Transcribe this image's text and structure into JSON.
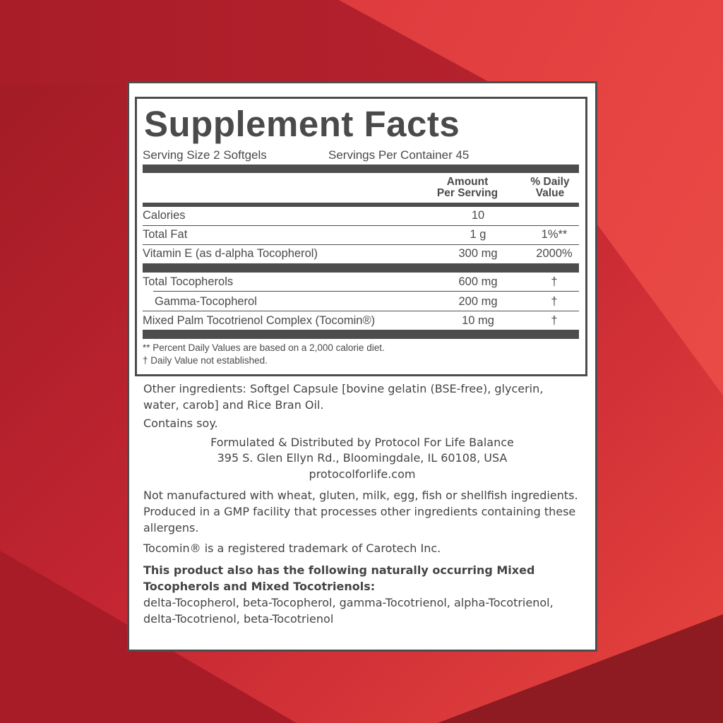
{
  "background_color": "#b8202c",
  "label": {
    "title": "Supplement Facts",
    "serving_size": "Serving Size 2 Softgels",
    "servings_per_container": "Servings Per Container 45",
    "columns": {
      "amount_line1": "Amount",
      "amount_line2": "Per Serving",
      "dv_line1": "% Daily",
      "dv_line2": "Value"
    },
    "rows_group1": [
      {
        "name": "Calories",
        "amount": "10",
        "dv": ""
      },
      {
        "name": "Total Fat",
        "amount": "1 g",
        "dv": "1%**"
      },
      {
        "name": "Vitamin E (as d-alpha Tocopherol)",
        "amount": "300 mg",
        "dv": "2000%"
      }
    ],
    "rows_group2": [
      {
        "name": "Total Tocopherols",
        "amount": "600 mg",
        "dv": "†"
      },
      {
        "name": "Gamma-Tocopherol",
        "amount": "200 mg",
        "dv": "†"
      },
      {
        "name": "Mixed Palm Tocotrienol Complex (Tocomin®)",
        "amount": "10 mg",
        "dv": "†"
      }
    ],
    "footnotes": [
      "** Percent Daily Values are based on a 2,000 calorie diet.",
      "† Daily Value not established."
    ]
  },
  "info": {
    "other_ingredients": "Other ingredients: Softgel Capsule [bovine gelatin (BSE-free), glycerin, water, carob] and Rice Bran Oil.",
    "contains": "Contains soy.",
    "distributor_line1": "Formulated & Distributed by Protocol For Life Balance",
    "distributor_line2": "395 S. Glen Ellyn Rd., Bloomingdale, IL 60108, USA",
    "website": "protocolforlife.com",
    "allergen": "Not manufactured with wheat, gluten, milk, egg, fish or shellfish ingredients. Produced in a GMP facility that processes other ingredients containing these allergens.",
    "trademark": "Tocomin® is a registered trademark of Carotech Inc.",
    "natural_heading": "This product also has the following naturally occurring Mixed Tocopherols and Mixed Tocotrienols:",
    "natural_list": "delta-Tocopherol, beta-Tocopherol, gamma-Tocotrienol, alpha-Tocotrienol, delta-Tocotrienol, beta-Tocotrienol"
  }
}
